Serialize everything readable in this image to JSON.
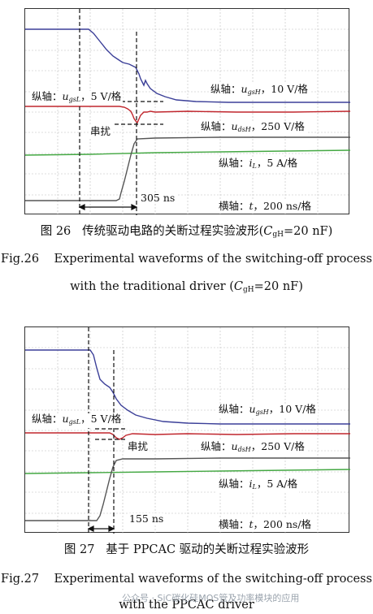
{
  "figure1": {
    "labels": {
      "vgsL_prefix": "纵轴：",
      "vgsL_var": "u",
      "vgsL_sub": "gsL",
      "vgsL_suffix": "，5 V/格",
      "vgsH_prefix": "纵轴：",
      "vgsH_var": "u",
      "vgsH_sub": "gsH",
      "vgsH_suffix": "，10 V/格",
      "vdsH_prefix": "纵轴：",
      "vdsH_var": "u",
      "vdsH_sub": "dsH",
      "vdsH_suffix": "，250 V/格",
      "iL_prefix": "纵轴：",
      "iL_var": "i",
      "iL_sub": "L",
      "iL_suffix": "，5 A/格",
      "crosstalk": "串扰",
      "time_prefix": "横轴：",
      "time_var": "t",
      "time_suffix": "，200 ns/格",
      "interval": "305 ns"
    },
    "caption_cn": {
      "number": "图 26",
      "text": "传统驱动电路的关断过程实验波形(",
      "var": "C",
      "sub": "gH",
      "value": "=20 nF)"
    },
    "caption_en": {
      "line1": "Fig.26    Experimental waveforms of the switching-off process",
      "line2_prefix": "with the traditional driver (",
      "line2_var": "C",
      "line2_sub": "gH",
      "line2_value": "=20 nF)"
    },
    "colors": {
      "vgsH": "#3b3f98",
      "vdsH": "#c0262d",
      "iL": "#44a843",
      "vgsL": "#555555"
    }
  },
  "figure2": {
    "labels": {
      "vgsL_prefix": "纵轴：",
      "vgsL_var": "u",
      "vgsL_sub": "gsL",
      "vgsL_suffix": "，5 V/格",
      "vgsH_prefix": "纵轴：",
      "vgsH_var": "u",
      "vgsH_sub": "gsH",
      "vgsH_suffix": "，10 V/格",
      "vdsH_prefix": "纵轴：",
      "vdsH_var": "u",
      "vdsH_sub": "dsH",
      "vdsH_suffix": "，250 V/格",
      "iL_prefix": "纵轴：",
      "iL_var": "i",
      "iL_sub": "L",
      "iL_suffix": "，5 A/格",
      "crosstalk": "串扰",
      "time_prefix": "横轴：",
      "time_var": "t",
      "time_suffix": "，200 ns/格",
      "interval": "155 ns"
    },
    "caption_cn": {
      "number": "图 27",
      "text": "基于 PPCAC 驱动的关断过程实验波形"
    },
    "caption_en": {
      "line1": "Fig.27    Experimental waveforms of the switching-off process",
      "line2": "with the PPCAC driver"
    },
    "colors": {
      "vgsH": "#3b3f98",
      "vdsH": "#c0262d",
      "iL": "#44a843",
      "vgsL": "#555555"
    }
  },
  "watermark": "公众号 · SiC碳化硅MOS管及功率模块的应用"
}
